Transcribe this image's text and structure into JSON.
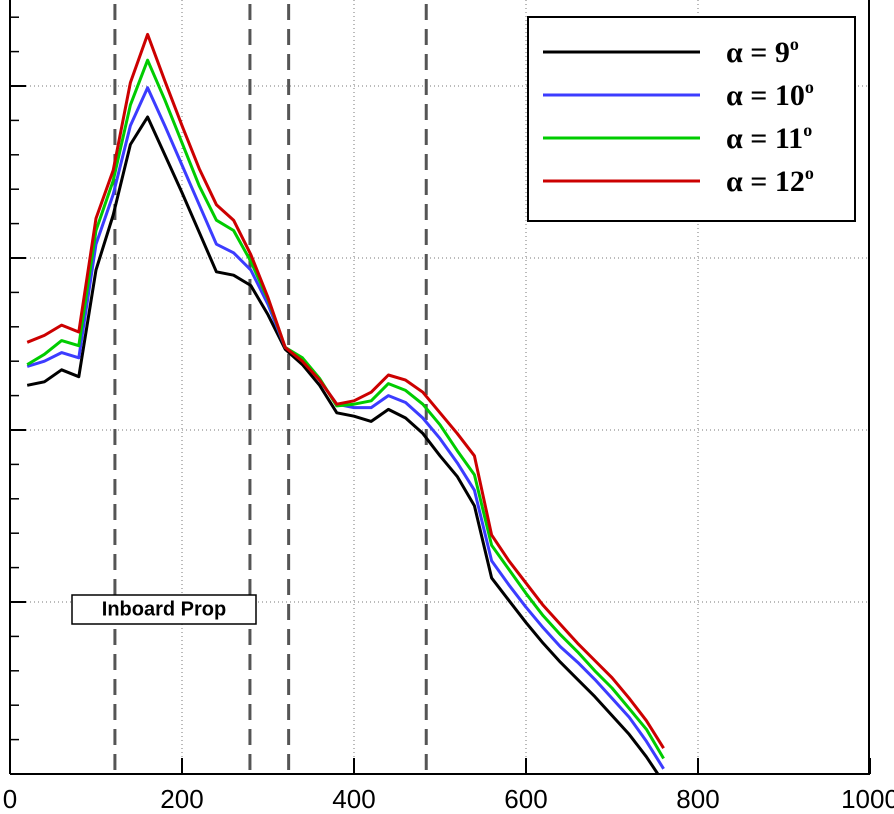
{
  "chart_data": {
    "type": "line",
    "x": [
      20,
      40,
      60,
      80,
      100,
      120,
      140,
      160,
      180,
      200,
      220,
      240,
      260,
      280,
      300,
      320,
      340,
      360,
      380,
      400,
      420,
      440,
      460,
      480,
      500,
      520,
      540,
      560,
      580,
      600,
      620,
      640,
      660,
      680,
      700,
      720,
      740,
      760
    ],
    "series": [
      {
        "name": "α = 9",
        "superscript": "o",
        "color": "#000000",
        "values": [
          226,
          228,
          235,
          231,
          293,
          325,
          366,
          382,
          360,
          338,
          315,
          292,
          290,
          284,
          267,
          247,
          238,
          226,
          210,
          208,
          205,
          212,
          207,
          198,
          185,
          173,
          156,
          114,
          101,
          88,
          76,
          65,
          55,
          45,
          34,
          23,
          10,
          -5
        ]
      },
      {
        "name": "α = 10",
        "superscript": "o",
        "color": "#3c3cff",
        "values": [
          237,
          240,
          245,
          242,
          308,
          337,
          377,
          399,
          377,
          354,
          331,
          308,
          303,
          293,
          273,
          248,
          241,
          229,
          215,
          213,
          213,
          220,
          216,
          207,
          195,
          181,
          165,
          124,
          110,
          97,
          85,
          74,
          65,
          55,
          44,
          33,
          19,
          3
        ]
      },
      {
        "name": "α = 11",
        "superscript": "o",
        "color": "#00cc00",
        "values": [
          238,
          244,
          252,
          249,
          316,
          345,
          389,
          415,
          392,
          367,
          342,
          322,
          316,
          298,
          276,
          248,
          242,
          230,
          214,
          215,
          217,
          227,
          223,
          215,
          203,
          188,
          174,
          133,
          119,
          105,
          92,
          81,
          71,
          60,
          50,
          38,
          26,
          9
        ]
      },
      {
        "name": "α = 12",
        "superscript": "o",
        "color": "#cc0000",
        "values": [
          251,
          255,
          261,
          257,
          323,
          351,
          402,
          430,
          403,
          377,
          352,
          331,
          322,
          302,
          277,
          248,
          240,
          229,
          215,
          217,
          222,
          232,
          229,
          222,
          210,
          198,
          185,
          139,
          124,
          111,
          98,
          87,
          76,
          66,
          56,
          44,
          31,
          15
        ]
      }
    ],
    "xlim": [
      0,
      1000
    ],
    "xticks": [
      0,
      200,
      400,
      600,
      800,
      1000
    ],
    "ylim": [
      0,
      450
    ],
    "yticks": [
      0,
      100,
      200,
      300,
      400
    ],
    "grid": true,
    "vlines": [
      122,
      279,
      324,
      484
    ],
    "annotation": "Inboard Prop",
    "legend": "upper right"
  }
}
